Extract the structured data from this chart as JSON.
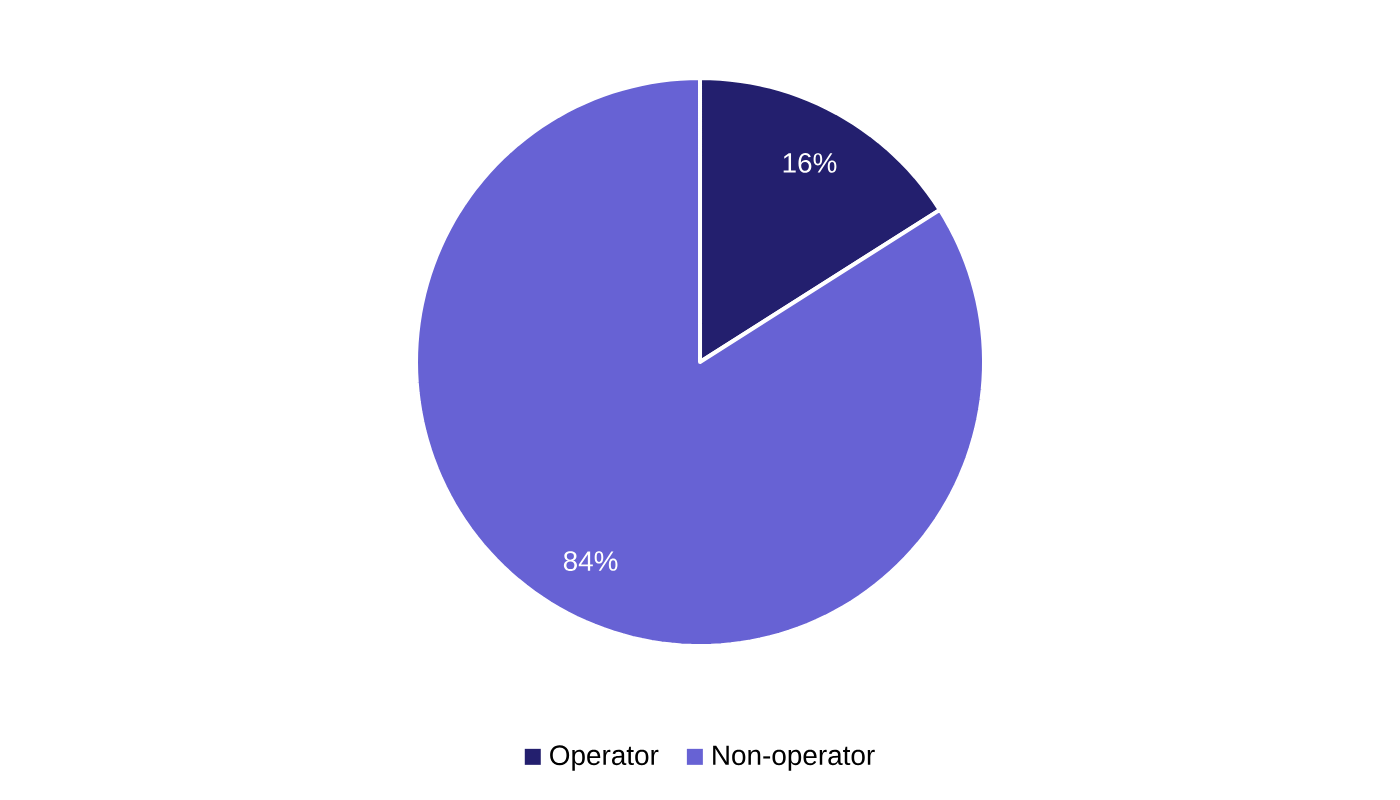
{
  "chart_data": {
    "type": "pie",
    "categories": [
      "Operator",
      "Non-operator"
    ],
    "values": [
      16,
      84
    ],
    "colors": [
      "#231f6e",
      "#6762d4"
    ],
    "value_labels": [
      "16%",
      "84%"
    ],
    "legend": "bottom"
  }
}
